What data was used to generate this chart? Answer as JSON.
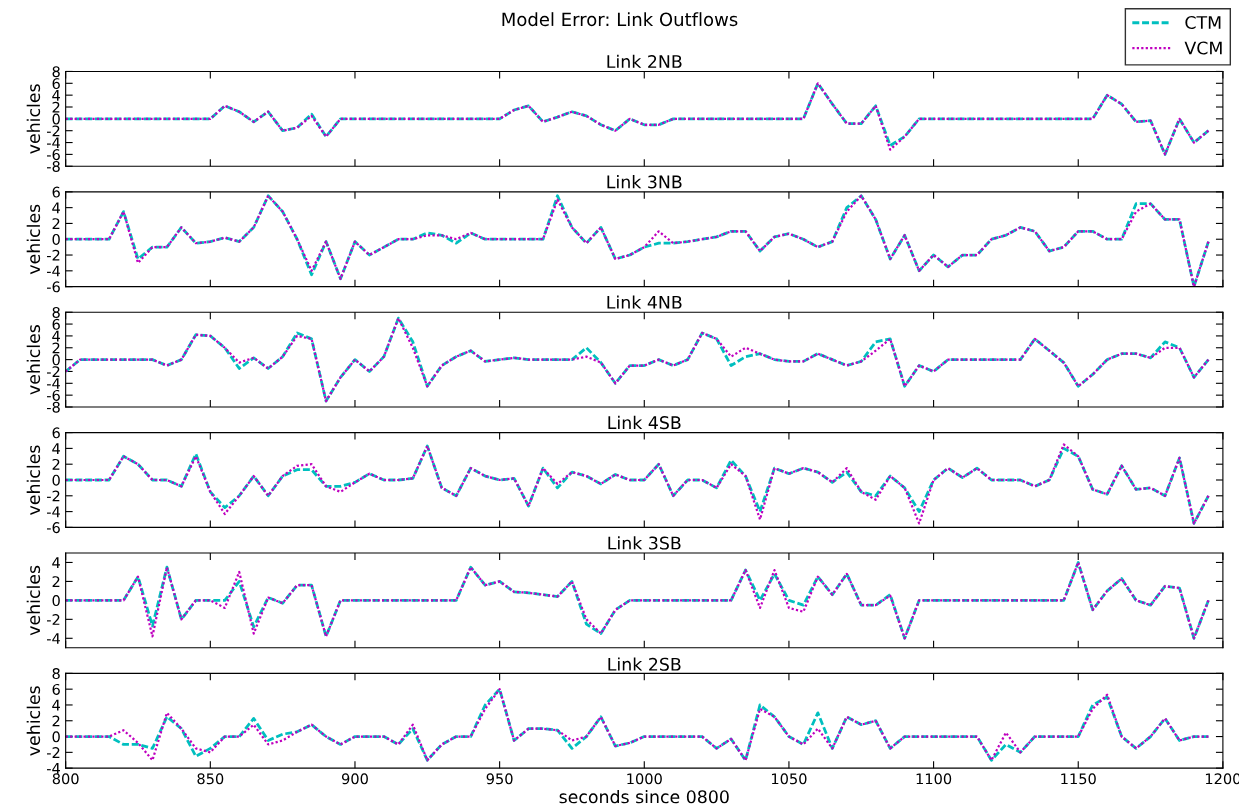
{
  "chart_data": [
    {
      "type": "line",
      "title": "Link 2NB",
      "ylabel": "vehicles",
      "annotations": [
        "Model Error: Link Outflows"
      ],
      "legend": "top right",
      "tick_labels": "y",
      "x": [
        800,
        805,
        810,
        815,
        820,
        825,
        830,
        835,
        840,
        845,
        850,
        855,
        860,
        865,
        870,
        875,
        880,
        885,
        890,
        895,
        900,
        905,
        910,
        915,
        920,
        925,
        930,
        935,
        940,
        945,
        950,
        955,
        960,
        965,
        970,
        975,
        980,
        985,
        990,
        995,
        1000,
        1005,
        1010,
        1015,
        1020,
        1025,
        1030,
        1035,
        1040,
        1045,
        1050,
        1055,
        1060,
        1065,
        1070,
        1075,
        1080,
        1085,
        1090,
        1095,
        1100,
        1105,
        1110,
        1115,
        1120,
        1125,
        1130,
        1135,
        1140,
        1145,
        1150,
        1155,
        1160,
        1165,
        1170,
        1175,
        1180,
        1185,
        1190,
        1195
      ],
      "xlim": [
        800,
        1200
      ],
      "xticks": [
        800,
        850,
        900,
        950,
        1000,
        1050,
        1100,
        1150,
        1200
      ],
      "ylim": [
        -8,
        8
      ],
      "yticks": [
        -8,
        -6,
        -4,
        -2,
        0,
        2,
        4,
        6,
        8
      ],
      "series": [
        {
          "name": "CTM",
          "color": "#00bfbf",
          "line_style": "dashed",
          "values": [
            0,
            0,
            0,
            0,
            0,
            0,
            0,
            0,
            0,
            0,
            0,
            2.2,
            1.2,
            -0.5,
            1.2,
            -2,
            -1.5,
            0.8,
            -3,
            0,
            0,
            0,
            0,
            0,
            0,
            0,
            0,
            0,
            0,
            0,
            0,
            1.5,
            2.2,
            -0.5,
            0.3,
            1.2,
            0.5,
            -1,
            -2,
            0,
            -1,
            -1,
            0,
            0,
            0,
            0,
            0,
            0,
            0,
            0,
            0,
            0,
            6,
            2.5,
            -0.8,
            -0.8,
            2.2,
            -4.5,
            -3,
            0,
            0,
            0,
            0,
            0,
            0,
            0,
            0,
            0,
            0,
            0,
            0,
            0,
            4,
            2.5,
            -0.5,
            -0.3,
            -6,
            0,
            -4,
            -2
          ]
        },
        {
          "name": "VCM",
          "color": "#bf00bf",
          "line_style": "dotted",
          "values": [
            0,
            0,
            0,
            0,
            0,
            0,
            0,
            0,
            0,
            0,
            0,
            2.2,
            1.2,
            -0.5,
            1.2,
            -2,
            -1.5,
            0.5,
            -3,
            0,
            0,
            0,
            0,
            0,
            0,
            0,
            0,
            0,
            0,
            0,
            0,
            1.5,
            2.2,
            -0.5,
            0.3,
            1.2,
            0.5,
            -1,
            -2,
            0,
            -1,
            -1,
            0,
            0,
            0,
            0,
            0,
            0,
            0,
            0,
            0,
            0,
            6,
            2.5,
            -0.8,
            -0.8,
            2.2,
            -5.2,
            -3,
            0,
            0,
            0,
            0,
            0,
            0,
            0,
            0,
            0,
            0,
            0,
            0,
            0,
            4,
            2.5,
            -0.5,
            -0.3,
            -6,
            0,
            -4,
            -2
          ]
        }
      ]
    },
    {
      "type": "line",
      "title": "Link 3NB",
      "ylabel": "vehicles",
      "tick_labels": "y",
      "x": [
        800,
        805,
        810,
        815,
        820,
        825,
        830,
        835,
        840,
        845,
        850,
        855,
        860,
        865,
        870,
        875,
        880,
        885,
        890,
        895,
        900,
        905,
        910,
        915,
        920,
        925,
        930,
        935,
        940,
        945,
        950,
        955,
        960,
        965,
        970,
        975,
        980,
        985,
        990,
        995,
        1000,
        1005,
        1010,
        1015,
        1020,
        1025,
        1030,
        1035,
        1040,
        1045,
        1050,
        1055,
        1060,
        1065,
        1070,
        1075,
        1080,
        1085,
        1090,
        1095,
        1100,
        1105,
        1110,
        1115,
        1120,
        1125,
        1130,
        1135,
        1140,
        1145,
        1150,
        1155,
        1160,
        1165,
        1170,
        1175,
        1180,
        1185,
        1190,
        1195
      ],
      "xlim": [
        800,
        1200
      ],
      "xticks": [
        800,
        850,
        900,
        950,
        1000,
        1050,
        1100,
        1150,
        1200
      ],
      "ylim": [
        -6,
        6
      ],
      "yticks": [
        -6,
        -4,
        -2,
        0,
        2,
        4,
        6
      ],
      "series": [
        {
          "color": "#00bfbf",
          "line_style": "dashed",
          "values": [
            0,
            0,
            0,
            0,
            3.5,
            -2.5,
            -1,
            -1,
            1.5,
            -0.5,
            -0.3,
            0.2,
            -0.3,
            1.5,
            5.5,
            3.5,
            0,
            -4.5,
            -0.3,
            -5,
            -0.3,
            -2,
            -1,
            0,
            0,
            0.8,
            0.5,
            -0.5,
            0.8,
            0,
            0,
            0,
            0,
            0,
            5.5,
            1.5,
            -0.5,
            1.5,
            -2.5,
            -2,
            -1,
            -0.5,
            -0.5,
            -0.3,
            0,
            0.3,
            1,
            1,
            -1.5,
            0.3,
            0.7,
            0,
            -1,
            -0.3,
            4,
            5.5,
            2.5,
            -2.5,
            0.5,
            -4,
            -2,
            -3.5,
            -2,
            -2,
            0,
            0.5,
            1.5,
            1,
            -1.5,
            -1,
            1,
            1,
            0,
            0,
            4.5,
            4.5,
            2.5,
            2.5,
            -6,
            -0.3
          ]
        },
        {
          "color": "#bf00bf",
          "line_style": "dotted",
          "values": [
            0,
            0,
            0,
            0,
            3.5,
            -3,
            -1,
            -1,
            1.5,
            -0.5,
            -0.3,
            0.2,
            -0.3,
            1.5,
            5.5,
            3.5,
            0,
            -4,
            -0.3,
            -5,
            -0.3,
            -2,
            -1,
            0,
            0,
            0.5,
            0.5,
            0,
            0.8,
            0,
            0,
            0,
            0,
            0,
            5,
            1.5,
            -0.5,
            1.5,
            -2.5,
            -2,
            -1,
            1,
            -0.5,
            -0.3,
            0,
            0.3,
            1,
            1,
            -1.5,
            0.3,
            0.7,
            0,
            -1,
            -0.3,
            3.5,
            5.5,
            2.5,
            -2.5,
            0.5,
            -4,
            -2,
            -3.5,
            -2,
            -2,
            0,
            0.5,
            1.5,
            1,
            -1.5,
            -1,
            1,
            1,
            0,
            0,
            3.5,
            4.5,
            2.5,
            2.5,
            -6,
            -0.3
          ]
        }
      ]
    },
    {
      "type": "line",
      "title": "Link 4NB",
      "ylabel": "vehicles",
      "tick_labels": "y",
      "x": [
        800,
        805,
        810,
        815,
        820,
        825,
        830,
        835,
        840,
        845,
        850,
        855,
        860,
        865,
        870,
        875,
        880,
        885,
        890,
        895,
        900,
        905,
        910,
        915,
        920,
        925,
        930,
        935,
        940,
        945,
        950,
        955,
        960,
        965,
        970,
        975,
        980,
        985,
        990,
        995,
        1000,
        1005,
        1010,
        1015,
        1020,
        1025,
        1030,
        1035,
        1040,
        1045,
        1050,
        1055,
        1060,
        1065,
        1070,
        1075,
        1080,
        1085,
        1090,
        1095,
        1100,
        1105,
        1110,
        1115,
        1120,
        1125,
        1130,
        1135,
        1140,
        1145,
        1150,
        1155,
        1160,
        1165,
        1170,
        1175,
        1180,
        1185,
        1190,
        1195
      ],
      "xlim": [
        800,
        1200
      ],
      "xticks": [
        800,
        850,
        900,
        950,
        1000,
        1050,
        1100,
        1150,
        1200
      ],
      "ylim": [
        -8,
        8
      ],
      "yticks": [
        -8,
        -6,
        -4,
        -2,
        0,
        2,
        4,
        6,
        8
      ],
      "series": [
        {
          "color": "#00bfbf",
          "line_style": "dashed",
          "values": [
            -2,
            0,
            0,
            0,
            0,
            0,
            0,
            -1,
            0,
            4.2,
            4,
            2,
            -1.5,
            0.3,
            -1.5,
            0.5,
            4.5,
            3.5,
            -7,
            -3,
            0,
            -2,
            0.5,
            7,
            3,
            -4.5,
            -1,
            0.5,
            1.5,
            -0.3,
            0,
            0.3,
            0,
            0,
            0,
            0,
            2,
            -0.5,
            -4,
            -1,
            -1,
            0,
            -1,
            0,
            4.5,
            3.5,
            -1,
            0.5,
            1,
            0,
            -0.3,
            -0.3,
            1,
            0,
            -1,
            -0.3,
            3,
            3.5,
            -4.5,
            -1,
            -2,
            0,
            0,
            0,
            0,
            0,
            0,
            3.5,
            1.5,
            -0.5,
            -4.5,
            -2.5,
            0,
            1,
            1,
            0.3,
            3,
            2,
            -3,
            0
          ]
        },
        {
          "color": "#bf00bf",
          "line_style": "dotted",
          "values": [
            -2,
            0,
            0,
            0,
            0,
            0,
            0,
            -1,
            0,
            4.2,
            4,
            2,
            -0.5,
            0.3,
            -1.5,
            0.5,
            4,
            3.5,
            -7,
            -3,
            0,
            -2,
            0.5,
            7,
            2,
            -4.5,
            -1,
            0.5,
            1.5,
            -0.3,
            0,
            0.3,
            0,
            0,
            0,
            0,
            0.5,
            -0.5,
            -4,
            -1,
            -1,
            0,
            -1,
            0,
            4.5,
            3.5,
            0.5,
            2,
            1,
            0,
            -0.3,
            -0.3,
            1,
            0,
            -1,
            -0.3,
            1.5,
            3.5,
            -4.5,
            -1,
            -2,
            0,
            0,
            0,
            0,
            0,
            0,
            3.5,
            1.5,
            -0.5,
            -4.5,
            -2.5,
            0,
            1,
            1,
            0.3,
            2,
            2,
            -3,
            0
          ]
        }
      ]
    },
    {
      "type": "line",
      "title": "Link 4SB",
      "ylabel": "vehicles",
      "tick_labels": "y",
      "x": [
        800,
        805,
        810,
        815,
        820,
        825,
        830,
        835,
        840,
        845,
        850,
        855,
        860,
        865,
        870,
        875,
        880,
        885,
        890,
        895,
        900,
        905,
        910,
        915,
        920,
        925,
        930,
        935,
        940,
        945,
        950,
        955,
        960,
        965,
        970,
        975,
        980,
        985,
        990,
        995,
        1000,
        1005,
        1010,
        1015,
        1020,
        1025,
        1030,
        1035,
        1040,
        1045,
        1050,
        1055,
        1060,
        1065,
        1070,
        1075,
        1080,
        1085,
        1090,
        1095,
        1100,
        1105,
        1110,
        1115,
        1120,
        1125,
        1130,
        1135,
        1140,
        1145,
        1150,
        1155,
        1160,
        1165,
        1170,
        1175,
        1180,
        1185,
        1190,
        1195
      ],
      "xlim": [
        800,
        1200
      ],
      "xticks": [
        800,
        850,
        900,
        950,
        1000,
        1050,
        1100,
        1150,
        1200
      ],
      "ylim": [
        -6,
        6
      ],
      "yticks": [
        -6,
        -4,
        -2,
        0,
        2,
        4,
        6
      ],
      "series": [
        {
          "color": "#00bfbf",
          "line_style": "dashed",
          "values": [
            0,
            0,
            0,
            0,
            3,
            2,
            0,
            0,
            -0.8,
            3.3,
            -1.5,
            -3.5,
            -2,
            0.5,
            -2,
            0.5,
            1.3,
            1.3,
            -0.8,
            -0.8,
            -0.3,
            0.8,
            0,
            0,
            0.2,
            4.3,
            -1,
            -2,
            1.5,
            0.5,
            0,
            0.2,
            -3.3,
            1.5,
            -1,
            1,
            0.5,
            -0.5,
            0.7,
            0,
            0,
            2,
            -2,
            0,
            0,
            -1,
            2.5,
            0.5,
            -4,
            1.5,
            0.8,
            1.5,
            1,
            -0.3,
            1,
            -1.5,
            -2,
            0.5,
            -1,
            -4,
            0,
            1.5,
            0.3,
            1.5,
            0,
            0,
            0,
            -0.8,
            0,
            4,
            3,
            -1.2,
            -1.8,
            1.8,
            -1.2,
            -1,
            -2,
            2.8,
            -5.5,
            -2
          ]
        },
        {
          "color": "#bf00bf",
          "line_style": "dotted",
          "values": [
            0,
            0,
            0,
            0,
            3,
            2,
            0,
            0,
            -0.8,
            3,
            -1.5,
            -4.3,
            -2,
            0.5,
            -2,
            0.5,
            1.8,
            2,
            -0.8,
            -1.5,
            -0.3,
            0.8,
            0,
            0,
            0.2,
            4.3,
            -1,
            -2,
            1.5,
            0.5,
            0,
            0.2,
            -3.3,
            1.5,
            -0.5,
            1,
            0.5,
            -0.5,
            0.7,
            0,
            0,
            2,
            -2,
            0,
            0,
            -1,
            2,
            0.5,
            -5,
            1.5,
            0.8,
            1.5,
            1,
            -0.3,
            1.5,
            -1.5,
            -2.5,
            0.5,
            -1,
            -5.5,
            0,
            1.5,
            0.3,
            1.5,
            0,
            0,
            0,
            -0.8,
            0,
            4.5,
            3,
            -1.2,
            -1.8,
            1.8,
            -1.2,
            -1,
            -2,
            2.8,
            -5.5,
            -2
          ]
        }
      ]
    },
    {
      "type": "line",
      "title": "Link 3SB",
      "ylabel": "vehicles",
      "tick_labels": "y",
      "x": [
        800,
        805,
        810,
        815,
        820,
        825,
        830,
        835,
        840,
        845,
        850,
        855,
        860,
        865,
        870,
        875,
        880,
        885,
        890,
        895,
        900,
        905,
        910,
        915,
        920,
        925,
        930,
        935,
        940,
        945,
        950,
        955,
        960,
        965,
        970,
        975,
        980,
        985,
        990,
        995,
        1000,
        1005,
        1010,
        1015,
        1020,
        1025,
        1030,
        1035,
        1040,
        1045,
        1050,
        1055,
        1060,
        1065,
        1070,
        1075,
        1080,
        1085,
        1090,
        1095,
        1100,
        1105,
        1110,
        1115,
        1120,
        1125,
        1130,
        1135,
        1140,
        1145,
        1150,
        1155,
        1160,
        1165,
        1170,
        1175,
        1180,
        1185,
        1190,
        1195
      ],
      "xlim": [
        800,
        1200
      ],
      "xticks": [
        800,
        850,
        900,
        950,
        1000,
        1050,
        1100,
        1150,
        1200
      ],
      "ylim": [
        -5,
        5
      ],
      "yticks": [
        -4,
        -2,
        0,
        2,
        4
      ],
      "series": [
        {
          "color": "#00bfbf",
          "line_style": "dashed",
          "values": [
            0,
            0,
            0,
            0,
            0,
            2.5,
            -2.7,
            3.5,
            -2,
            0,
            0,
            0,
            2,
            -2.8,
            0.3,
            -0.3,
            1.6,
            1.6,
            -3.8,
            0,
            0,
            0,
            0,
            0,
            0,
            0,
            0,
            0,
            3.5,
            1.6,
            2,
            0.9,
            0.8,
            0.6,
            0.4,
            2,
            -2.5,
            -3.5,
            -1,
            0,
            0,
            0,
            0,
            0,
            0,
            0,
            0,
            3.2,
            0,
            2.8,
            0,
            -0.5,
            2.5,
            0.6,
            2.8,
            -0.5,
            -0.5,
            0.6,
            -4,
            0,
            0,
            0,
            0,
            0,
            0,
            0,
            0,
            0,
            0,
            0,
            4,
            -1,
            1,
            2.3,
            0,
            -0.5,
            1.5,
            1.3,
            -4,
            0
          ]
        },
        {
          "color": "#bf00bf",
          "line_style": "dotted",
          "values": [
            0,
            0,
            0,
            0,
            0,
            2.5,
            -3.8,
            3.5,
            -2,
            0,
            0,
            -0.8,
            3,
            -3.5,
            0.3,
            -0.3,
            1.6,
            1.6,
            -3.8,
            0,
            0,
            0,
            0,
            0,
            0,
            0,
            0,
            0,
            3.5,
            1.6,
            2,
            0.9,
            0.8,
            0.6,
            0.4,
            2,
            -2,
            -3.5,
            -1,
            0,
            0,
            0,
            0,
            0,
            0,
            0,
            0,
            3.2,
            -0.8,
            3.2,
            -0.8,
            -1.2,
            2.5,
            0.6,
            2.8,
            -0.5,
            -0.5,
            0.5,
            -4,
            0,
            0,
            0,
            0,
            0,
            0,
            0,
            0,
            0,
            0,
            0,
            4,
            -1,
            1,
            2.3,
            0,
            -0.5,
            1.5,
            1.3,
            -4,
            0
          ]
        }
      ]
    },
    {
      "type": "line",
      "title": "Link 2SB",
      "ylabel": "vehicles",
      "xlabel": "seconds since 0800",
      "x": [
        800,
        805,
        810,
        815,
        820,
        825,
        830,
        835,
        840,
        845,
        850,
        855,
        860,
        865,
        870,
        875,
        880,
        885,
        890,
        895,
        900,
        905,
        910,
        915,
        920,
        925,
        930,
        935,
        940,
        945,
        950,
        955,
        960,
        965,
        970,
        975,
        980,
        985,
        990,
        995,
        1000,
        1005,
        1010,
        1015,
        1020,
        1025,
        1030,
        1035,
        1040,
        1045,
        1050,
        1055,
        1060,
        1065,
        1070,
        1075,
        1080,
        1085,
        1090,
        1095,
        1100,
        1105,
        1110,
        1115,
        1120,
        1125,
        1130,
        1135,
        1140,
        1145,
        1150,
        1155,
        1160,
        1165,
        1170,
        1175,
        1180,
        1185,
        1190,
        1195
      ],
      "xlim": [
        800,
        1200
      ],
      "xticks": [
        800,
        850,
        900,
        950,
        1000,
        1050,
        1100,
        1150,
        1200
      ],
      "ylim": [
        -4,
        8
      ],
      "yticks": [
        -4,
        -2,
        0,
        2,
        4,
        6,
        8
      ],
      "series": [
        {
          "color": "#00bfbf",
          "line_style": "dashed",
          "values": [
            0,
            0,
            0,
            0,
            -1,
            -1,
            -1.5,
            2.5,
            1,
            -2.5,
            -1.5,
            0,
            0,
            2.3,
            -0.5,
            0.3,
            0.6,
            1.5,
            0,
            -1,
            0,
            0,
            0,
            -1,
            1,
            -3,
            -1,
            0,
            0,
            4,
            6,
            -0.5,
            1,
            1,
            0.8,
            -1.5,
            0,
            2.5,
            -1.2,
            -0.8,
            0,
            0,
            0,
            0,
            0,
            -1.5,
            -0.3,
            -3,
            4,
            2.5,
            0,
            -1,
            3,
            -1.5,
            2.5,
            1.5,
            2,
            -1.5,
            0,
            0,
            0,
            0,
            0,
            0,
            -3,
            -1,
            -2,
            0,
            0,
            0,
            0,
            4,
            5,
            0,
            -1.5,
            0,
            2.3,
            -0.5,
            0,
            0
          ]
        },
        {
          "color": "#bf00bf",
          "line_style": "dotted",
          "values": [
            0,
            0,
            0,
            0,
            0.8,
            -0.8,
            -3,
            3,
            1,
            -1.5,
            -2,
            0,
            0,
            1.5,
            -1,
            -0.5,
            0.6,
            1.5,
            0,
            -1,
            0,
            0,
            0,
            -1,
            1.5,
            -3,
            -1,
            0,
            0,
            3.5,
            6,
            -0.5,
            1,
            1,
            0.8,
            -0.5,
            0,
            2.5,
            -1.2,
            -0.8,
            0,
            0,
            0,
            0,
            0,
            -1.5,
            -0.3,
            -3,
            3.5,
            2.5,
            0,
            -1,
            1,
            -1.5,
            2.5,
            1.5,
            2,
            -1.5,
            0,
            0,
            0,
            0,
            0,
            0,
            -3,
            0.5,
            -2,
            0,
            0,
            0,
            0,
            3.5,
            5.3,
            0,
            -1.5,
            0,
            2.3,
            -0.5,
            0,
            0
          ]
        }
      ]
    }
  ]
}
